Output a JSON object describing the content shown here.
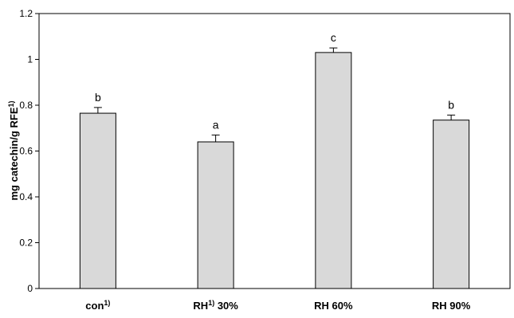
{
  "chart_data": {
    "type": "bar",
    "title": "",
    "ylabel": "mg catechin/g RFE",
    "ylabel_superscript": "1)",
    "ylim": [
      0,
      1.2
    ],
    "yticks": [
      "0",
      "0.2",
      "0.4",
      "0.6",
      "0.8",
      "1",
      "1.2"
    ],
    "grid": false,
    "legend": "none",
    "categories": [
      {
        "main": "con",
        "sup": "1)",
        "rest": ""
      },
      {
        "main": "RH",
        "sup": "1)",
        "rest": " 30%"
      },
      {
        "main": "RH 60%",
        "sup": "",
        "rest": ""
      },
      {
        "main": "RH 90%",
        "sup": "",
        "rest": ""
      }
    ],
    "series": [
      {
        "values": [
          0.765,
          0.64,
          1.03,
          0.735
        ],
        "errors": [
          0.025,
          0.03,
          0.02,
          0.022
        ],
        "significance": [
          "b",
          "a",
          "c",
          "b"
        ]
      }
    ],
    "colors": {
      "bar_fill": "#d9d9d9",
      "bar_stroke": "#000000"
    }
  }
}
